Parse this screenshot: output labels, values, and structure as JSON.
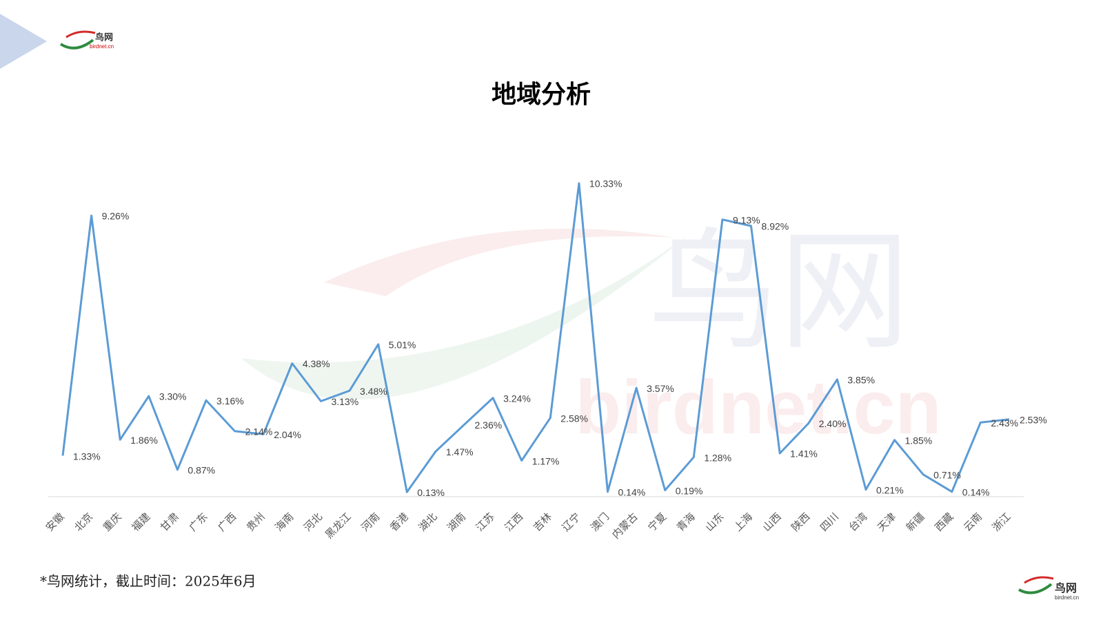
{
  "logo": {
    "name": "鸟网",
    "domain": "birdnet.cn"
  },
  "watermark": {
    "name": "鸟网",
    "domain": "birdnet.cn"
  },
  "footnote": "*鸟网统计，截止时间：2025年6月",
  "chart_data": {
    "type": "line",
    "title": "地域分析",
    "color": "#5b9bd5",
    "categories": [
      "安徽",
      "北京",
      "重庆",
      "福建",
      "甘肃",
      "广东",
      "广西",
      "贵州",
      "海南",
      "河北",
      "黑龙江",
      "河南",
      "香港",
      "湖北",
      "湖南",
      "江苏",
      "江西",
      "吉林",
      "辽宁",
      "澳门",
      "内蒙古",
      "宁夏",
      "青海",
      "山东",
      "上海",
      "山西",
      "陕西",
      "四川",
      "台湾",
      "天津",
      "新疆",
      "西藏",
      "云南",
      "浙江"
    ],
    "values": [
      1.33,
      9.26,
      1.86,
      3.3,
      0.87,
      3.16,
      2.14,
      2.04,
      4.38,
      3.13,
      3.48,
      5.01,
      0.13,
      1.47,
      2.36,
      3.24,
      1.17,
      2.58,
      10.33,
      0.14,
      3.57,
      0.19,
      1.28,
      9.13,
      8.92,
      1.41,
      2.4,
      3.85,
      0.21,
      1.85,
      0.71,
      0.14,
      2.43,
      2.53
    ],
    "value_labels": [
      "1.33%",
      "9.26%",
      "1.86%",
      "3.30%",
      "0.87%",
      "3.16%",
      "2.14%",
      "2.04%",
      "4.38%",
      "3.13%",
      "3.48%",
      "5.01%",
      "0.13%",
      "1.47%",
      "2.36%",
      "3.24%",
      "1.17%",
      "2.58%",
      "10.33%",
      "0.14%",
      "3.57%",
      "0.19%",
      "1.28%",
      "9.13%",
      "8.92%",
      "1.41%",
      "2.40%",
      "3.85%",
      "0.21%",
      "1.85%",
      "0.71%",
      "0.14%",
      "2.43%",
      "2.53%"
    ]
  }
}
